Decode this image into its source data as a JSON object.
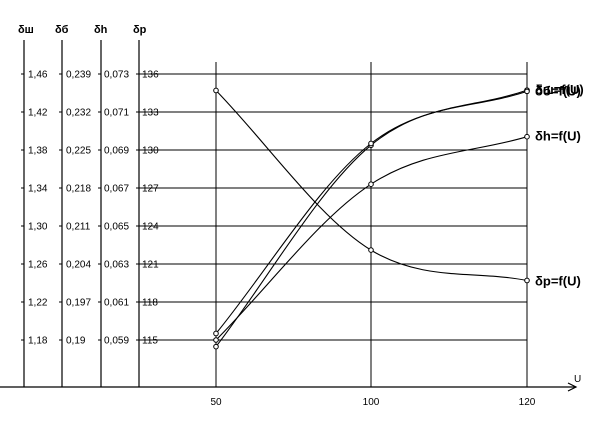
{
  "chart_data": {
    "type": "line",
    "x_axis": {
      "label": "U",
      "ticks": [
        50,
        100,
        120
      ],
      "range": [
        25,
        120
      ]
    },
    "y_axes": [
      {
        "name": "δш",
        "range": [
          1.14,
          1.5
        ],
        "ticks": [
          1.18,
          1.22,
          1.26,
          1.3,
          1.34,
          1.38,
          1.42,
          1.46
        ],
        "tick_labels": [
          "1,18",
          "1,22",
          "1,26",
          "1,30",
          "1,34",
          "1,38",
          "1,42",
          "1,46"
        ]
      },
      {
        "name": "δб",
        "range": [
          0.183,
          0.246
        ],
        "ticks": [
          0.19,
          0.197,
          0.204,
          0.211,
          0.218,
          0.225,
          0.232,
          0.239
        ],
        "tick_labels": [
          "0,19",
          "0,197",
          "0,204",
          "0,211",
          "0,218",
          "0,225",
          "0,232",
          "0,239"
        ]
      },
      {
        "name": "δh",
        "range": [
          0.057,
          0.075
        ],
        "ticks": [
          0.059,
          0.061,
          0.063,
          0.065,
          0.067,
          0.069,
          0.071,
          0.073
        ],
        "tick_labels": [
          "0,059",
          "0,061",
          "0,063",
          "0,065",
          "0,067",
          "0,069",
          "0,071",
          "0,073"
        ]
      },
      {
        "name": "δр",
        "range": [
          112,
          139
        ],
        "ticks": [
          115,
          118,
          121,
          124,
          127,
          130,
          133,
          136
        ],
        "tick_labels": [
          "115",
          "118",
          "121",
          "124",
          "127",
          "130",
          "133",
          "136"
        ]
      }
    ],
    "series": [
      {
        "name": "δш=f(U)",
        "axis": 0,
        "x": [
          50,
          100,
          120
        ],
        "y": [
          1.173,
          1.385,
          1.443
        ]
      },
      {
        "name": "δб=f(U)",
        "axis": 1,
        "x": [
          50,
          100,
          120
        ],
        "y": [
          0.1912,
          0.2262,
          0.2358
        ]
      },
      {
        "name": "δh=f(U)",
        "axis": 2,
        "x": [
          50,
          100,
          120
        ],
        "y": [
          0.059,
          0.0672,
          0.0697
        ]
      },
      {
        "name": "δр=f(U)",
        "axis": 3,
        "x": [
          50,
          100,
          120
        ],
        "y": [
          134.7,
          122.1,
          119.7
        ]
      }
    ],
    "grid": true
  }
}
